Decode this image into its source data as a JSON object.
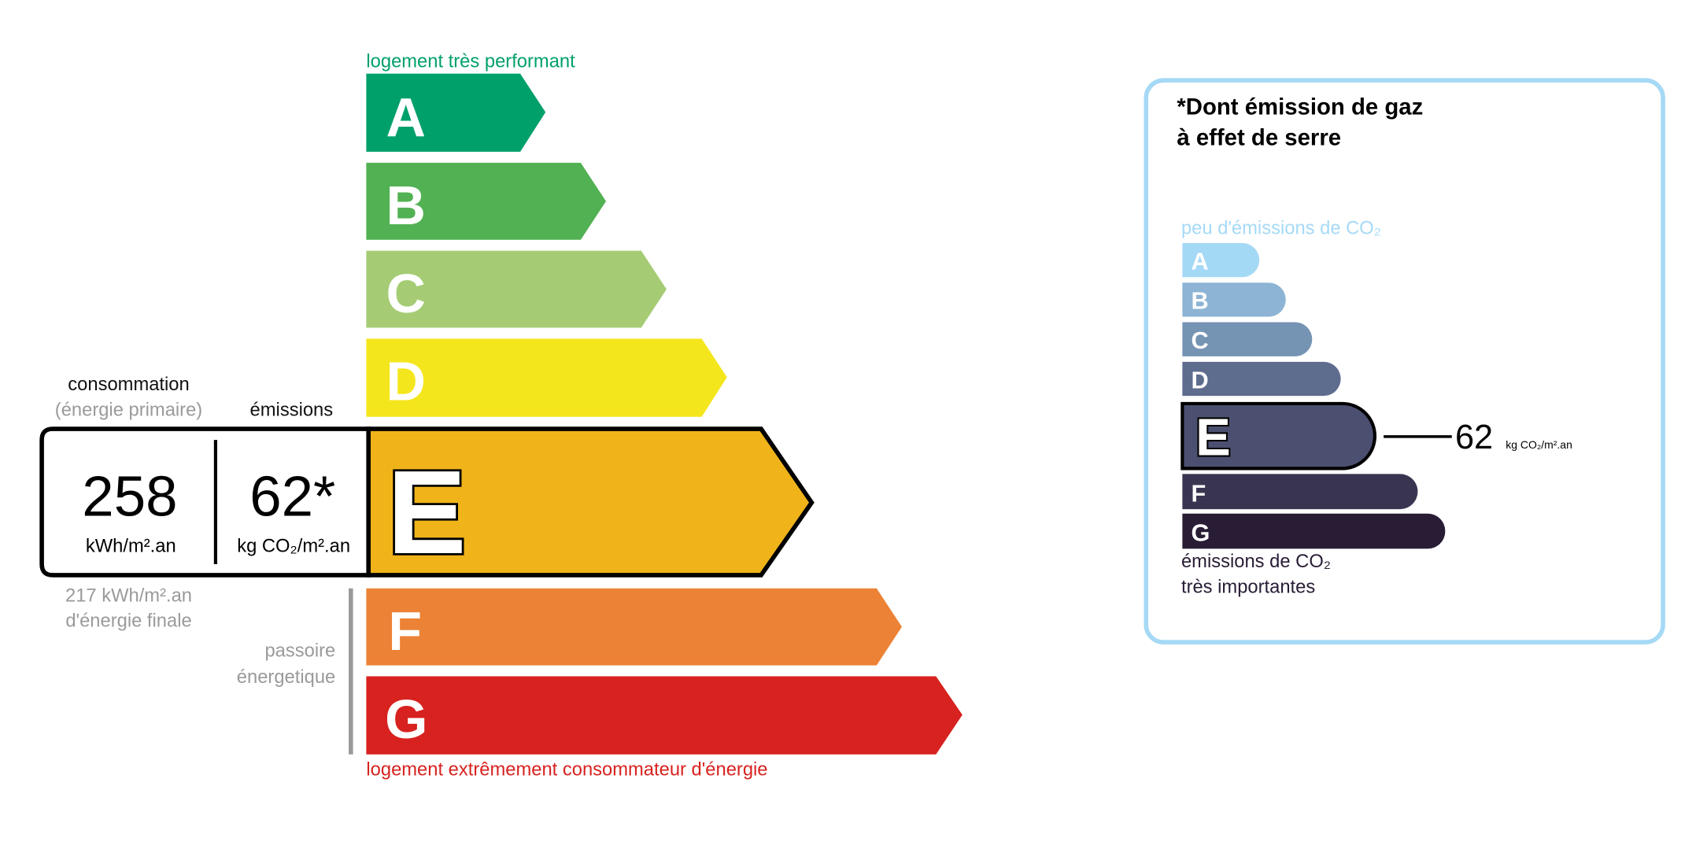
{
  "energy": {
    "top_label": "logement très performant",
    "bottom_label": "logement extrêmement consommateur d'énergie",
    "classes": [
      {
        "letter": "A",
        "color": "#00a06a"
      },
      {
        "letter": "B",
        "color": "#52b153"
      },
      {
        "letter": "C",
        "color": "#a5cc74"
      },
      {
        "letter": "D",
        "color": "#f4e61c"
      },
      {
        "letter": "E",
        "color": "#f0b41a"
      },
      {
        "letter": "F",
        "color": "#ec8235"
      },
      {
        "letter": "G",
        "color": "#d7221f"
      }
    ],
    "current_class": "E",
    "consumption_header": "consommation",
    "consumption_subheader": "(énergie primaire)",
    "emissions_header": "émissions",
    "consumption_value": "258",
    "consumption_unit": "kWh/m².an",
    "emissions_value": "62*",
    "emissions_unit": "kg CO₂/m².an",
    "final_energy_line1": "217 kWh/m².an",
    "final_energy_line2": "d'énergie finale",
    "passoire_line1": "passoire",
    "passoire_line2": "énergetique"
  },
  "ges": {
    "title_line1": "*Dont émission de gaz",
    "title_line2": "à effet de serre",
    "top_label": "peu d'émissions de CO₂",
    "bottom_label_line1": "émissions de CO₂",
    "bottom_label_line2": "très importantes",
    "classes": [
      {
        "letter": "A",
        "color": "#a4d9f6"
      },
      {
        "letter": "B",
        "color": "#8db4d4"
      },
      {
        "letter": "C",
        "color": "#7593b3"
      },
      {
        "letter": "D",
        "color": "#5e6c8e"
      },
      {
        "letter": "E",
        "color": "#4c5070"
      },
      {
        "letter": "F",
        "color": "#393551"
      },
      {
        "letter": "G",
        "color": "#291c35"
      }
    ],
    "current_class": "E",
    "value": "62",
    "unit": "kg CO₂/m².an",
    "border_color": "#a5d9f5"
  }
}
